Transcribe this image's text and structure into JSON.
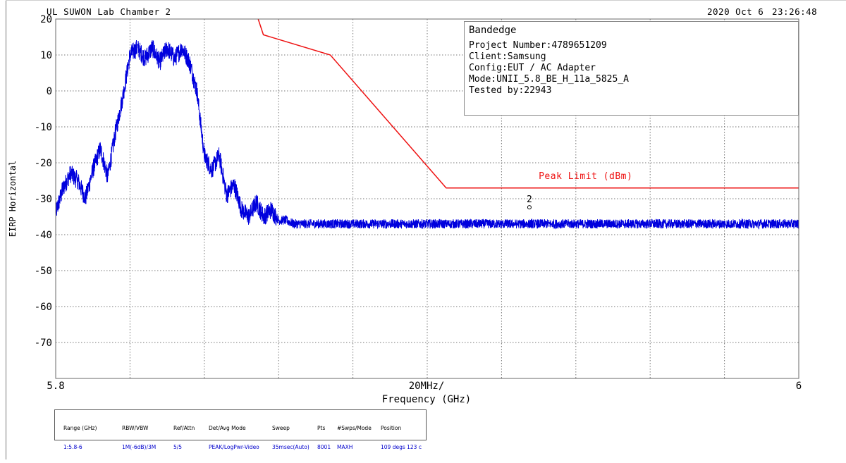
{
  "header": {
    "site": "UL SUWON Lab Chamber 2",
    "date": "2020 Oct 6",
    "time": "23:26:48"
  },
  "info_box": {
    "heading": "Bandedge",
    "lines": [
      "Project Number:4789651209",
      "Client:Samsung",
      "Config:EUT / AC Adapter",
      "Mode:UNII_5.8_BE_H_11a_5825_A",
      "Tested by:22943"
    ]
  },
  "settings": {
    "columns": [
      {
        "header": "Range (GHz)",
        "value": "1:5.8-6"
      },
      {
        "header": "RBW/VBW",
        "value": "1M(-6dB)/3M"
      },
      {
        "header": "Ref/Attn",
        "value": "5/5"
      },
      {
        "header": "Det/Avg Mode",
        "value": "PEAK/LogPwr-Video"
      },
      {
        "header": "Sweep",
        "value": "35msec(Auto)"
      },
      {
        "header": "Pts",
        "value": "8001"
      },
      {
        "header": "#Swps/Mode",
        "value": "MAXH"
      },
      {
        "header": "Position",
        "value": "109 degs 123 c"
      }
    ]
  },
  "chart_data": {
    "type": "line",
    "xlabel": "Frequency (GHz)",
    "ylabel": "EIRP Horizontal",
    "x_tick_left": "5.8",
    "x_tick_mid": "20MHz/",
    "x_tick_right": "6",
    "xlim": [
      5.8,
      6.0
    ],
    "ylim": [
      -80,
      20
    ],
    "y_ticks": [
      20,
      10,
      0,
      -10,
      -20,
      -30,
      -40,
      -50,
      -60,
      -70
    ],
    "grid": true,
    "colors": {
      "trace": "#0000dd",
      "limit": "#ee1111",
      "grid": "#777777"
    },
    "series": [
      {
        "name": "Trace",
        "x": [
          5.8,
          5.802,
          5.804,
          5.806,
          5.808,
          5.81,
          5.812,
          5.814,
          5.816,
          5.818,
          5.82,
          5.822,
          5.824,
          5.826,
          5.828,
          5.83,
          5.832,
          5.834,
          5.836,
          5.838,
          5.84,
          5.842,
          5.844,
          5.846,
          5.848,
          5.85,
          5.852,
          5.854,
          5.856,
          5.858,
          5.86,
          5.862,
          5.864,
          5.866,
          5.868,
          5.87,
          5.872,
          5.874,
          5.876,
          5.878,
          5.88,
          5.882,
          5.886,
          5.89,
          5.9,
          5.95,
          6.0
        ],
        "y": [
          -34,
          -27,
          -23,
          -25,
          -30,
          -22,
          -16,
          -24,
          -12,
          -2,
          10,
          12,
          9,
          12,
          8,
          12,
          9,
          12,
          8,
          0,
          -18,
          -22,
          -18,
          -29,
          -26,
          -33,
          -35,
          -31,
          -35,
          -33,
          -36,
          -36,
          -37,
          -37,
          -37,
          -37,
          -37,
          -37,
          -37,
          -37,
          -37,
          -37,
          -37,
          -37,
          -37,
          -37,
          -37
        ]
      },
      {
        "name": "Peak Limit (dBm)",
        "x": [
          5.8545,
          5.8559,
          5.8739,
          5.9051,
          6.0
        ],
        "y": [
          20,
          15.6,
          10,
          -27,
          -27
        ]
      }
    ],
    "annotations": [
      {
        "text": "Peak Limit (dBm)",
        "x": 5.93,
        "y": -24.5
      },
      {
        "text": "2",
        "x": 5.9275,
        "y": -31
      }
    ]
  }
}
